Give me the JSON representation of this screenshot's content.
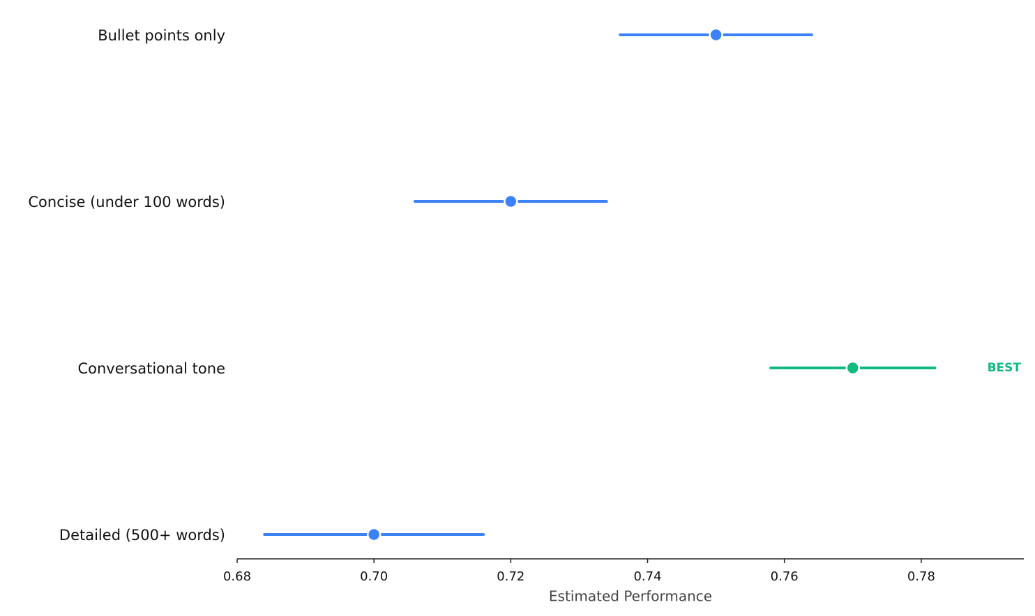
{
  "chart_data": {
    "type": "dot",
    "categories": [
      "Bullet points only",
      "Concise (under 100 words)",
      "Conversational tone",
      "Detailed (500+ words)"
    ],
    "values": [
      0.75,
      0.72,
      0.77,
      0.7
    ],
    "errors": [
      0.014,
      0.014,
      0.012,
      0.016
    ],
    "colors": [
      "#3b82f6",
      "#3b82f6",
      "#10b981",
      "#3b82f6"
    ],
    "xlabel": "Estimated Performance",
    "xlim": [
      0.68,
      0.795
    ],
    "xticks": [
      0.68,
      {
        "value": 0.7,
        "label": "0.70"
      },
      0.72,
      0.74,
      0.76,
      0.78
    ],
    "annotation": {
      "text": "BEST",
      "category": "Conversational tone"
    }
  }
}
